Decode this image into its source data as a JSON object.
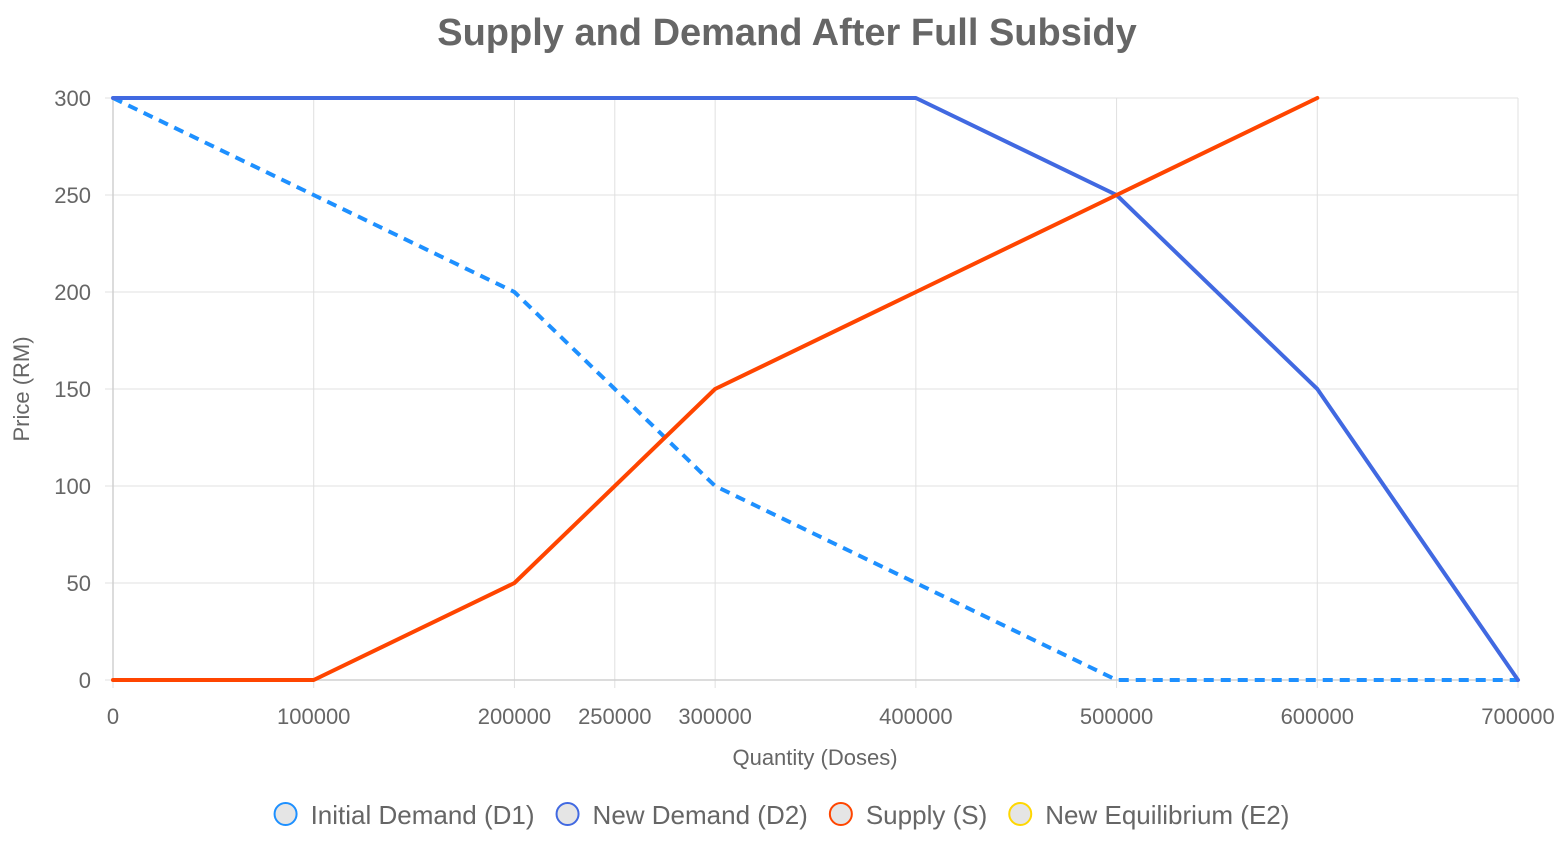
{
  "chart_data": {
    "type": "line",
    "title": "Supply and Demand After Full Subsidy",
    "xlabel": "Quantity (Doses)",
    "ylabel": "Price (RM)",
    "xlim": [
      0,
      700000
    ],
    "ylim": [
      0,
      300
    ],
    "x_ticks": [
      0,
      100000,
      200000,
      250000,
      300000,
      400000,
      500000,
      600000,
      700000
    ],
    "y_ticks": [
      0,
      50,
      100,
      150,
      200,
      250,
      300
    ],
    "grid": true,
    "legend_position": "bottom",
    "series": [
      {
        "name": "Initial Demand (D1)",
        "color": "#1e90ff",
        "dashed": true,
        "points": [
          [
            0,
            300
          ],
          [
            100000,
            250
          ],
          [
            200000,
            200
          ],
          [
            250000,
            150
          ],
          [
            300000,
            100
          ],
          [
            400000,
            50
          ],
          [
            500000,
            0
          ],
          [
            700000,
            0
          ]
        ]
      },
      {
        "name": "New Demand (D2)",
        "color": "#4169e1",
        "dashed": false,
        "points": [
          [
            0,
            300
          ],
          [
            400000,
            300
          ],
          [
            500000,
            250
          ],
          [
            600000,
            150
          ],
          [
            700000,
            0
          ]
        ]
      },
      {
        "name": "Supply (S)",
        "color": "#ff4500",
        "dashed": false,
        "points": [
          [
            0,
            0
          ],
          [
            100000,
            0
          ],
          [
            200000,
            50
          ],
          [
            250000,
            100
          ],
          [
            300000,
            150
          ],
          [
            400000,
            200
          ],
          [
            500000,
            250
          ],
          [
            600000,
            300
          ]
        ]
      },
      {
        "name": "New Equilibrium (E2)",
        "color": "#ffd700",
        "dashed": false,
        "points": []
      }
    ]
  }
}
